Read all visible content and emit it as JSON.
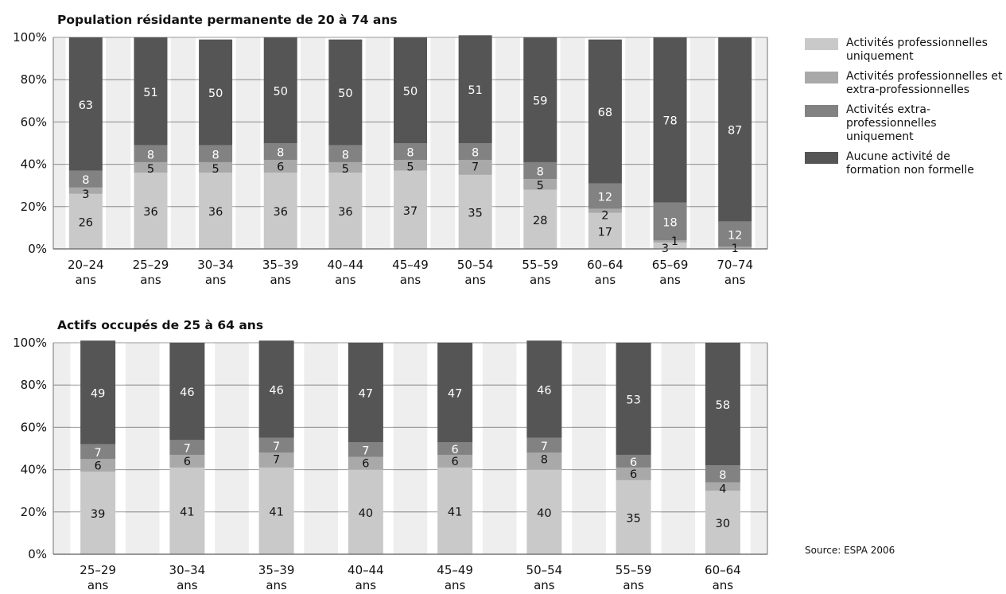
{
  "legend": {
    "items": [
      {
        "label": "Activités professionnelles uniquement",
        "color": "#c9c9c9"
      },
      {
        "label": "Activités professionnelles et extra-professionnelles",
        "color": "#a9a9a9"
      },
      {
        "label": "Activités extra-professionnelles uniquement",
        "color": "#828282"
      },
      {
        "label": "Aucune activité de formation non formelle",
        "color": "#555555"
      }
    ]
  },
  "source": "Source: ESPA 2006",
  "chart_data": [
    {
      "type": "bar",
      "stacked": true,
      "title": "Population résidante permanente de 20 à 74 ans",
      "ytick_labels": [
        "0%",
        "20%",
        "40%",
        "60%",
        "80%",
        "100%"
      ],
      "ylim": [
        0,
        100
      ],
      "grid": true,
      "categories": [
        {
          "line1": "20–24",
          "line2": "ans"
        },
        {
          "line1": "25–29",
          "line2": "ans"
        },
        {
          "line1": "30–34",
          "line2": "ans"
        },
        {
          "line1": "35–39",
          "line2": "ans"
        },
        {
          "line1": "40–44",
          "line2": "ans"
        },
        {
          "line1": "45–49",
          "line2": "ans"
        },
        {
          "line1": "50–54",
          "line2": "ans"
        },
        {
          "line1": "55–59",
          "line2": "ans"
        },
        {
          "line1": "60–64",
          "line2": "ans"
        },
        {
          "line1": "65–69",
          "line2": "ans"
        },
        {
          "line1": "70–74",
          "line2": "ans"
        }
      ],
      "series": [
        {
          "name": "Activités professionnelles uniquement",
          "values": [
            26,
            36,
            36,
            36,
            36,
            37,
            35,
            28,
            17,
            3,
            0
          ]
        },
        {
          "name": "Activités professionnelles et extra-professionnelles",
          "values": [
            3,
            5,
            5,
            6,
            5,
            5,
            7,
            5,
            2,
            1,
            1
          ]
        },
        {
          "name": "Activités extra-professionnelles uniquement",
          "values": [
            8,
            8,
            8,
            8,
            8,
            8,
            8,
            8,
            12,
            18,
            12
          ]
        },
        {
          "name": "Aucune activité de formation non formelle",
          "values": [
            63,
            51,
            50,
            50,
            50,
            50,
            51,
            59,
            68,
            78,
            87
          ]
        }
      ]
    },
    {
      "type": "bar",
      "stacked": true,
      "title": "Actifs occupés de 25 à 64 ans",
      "ytick_labels": [
        "0%",
        "20%",
        "40%",
        "60%",
        "80%",
        "100%"
      ],
      "ylim": [
        0,
        100
      ],
      "grid": true,
      "categories": [
        {
          "line1": "25–29",
          "line2": "ans"
        },
        {
          "line1": "30–34",
          "line2": "ans"
        },
        {
          "line1": "35–39",
          "line2": "ans"
        },
        {
          "line1": "40–44",
          "line2": "ans"
        },
        {
          "line1": "45–49",
          "line2": "ans"
        },
        {
          "line1": "50–54",
          "line2": "ans"
        },
        {
          "line1": "55–59",
          "line2": "ans"
        },
        {
          "line1": "60–64",
          "line2": "ans"
        }
      ],
      "series": [
        {
          "name": "Activités professionnelles uniquement",
          "values": [
            39,
            41,
            41,
            40,
            41,
            40,
            35,
            30
          ]
        },
        {
          "name": "Activités professionnelles et extra-professionnelles",
          "values": [
            6,
            6,
            7,
            6,
            6,
            8,
            6,
            4
          ]
        },
        {
          "name": "Activités extra-professionnelles uniquement",
          "values": [
            7,
            7,
            7,
            7,
            6,
            7,
            6,
            8
          ]
        },
        {
          "name": "Aucune activité de formation non formelle",
          "values": [
            49,
            46,
            46,
            47,
            47,
            46,
            53,
            58
          ]
        }
      ]
    }
  ]
}
